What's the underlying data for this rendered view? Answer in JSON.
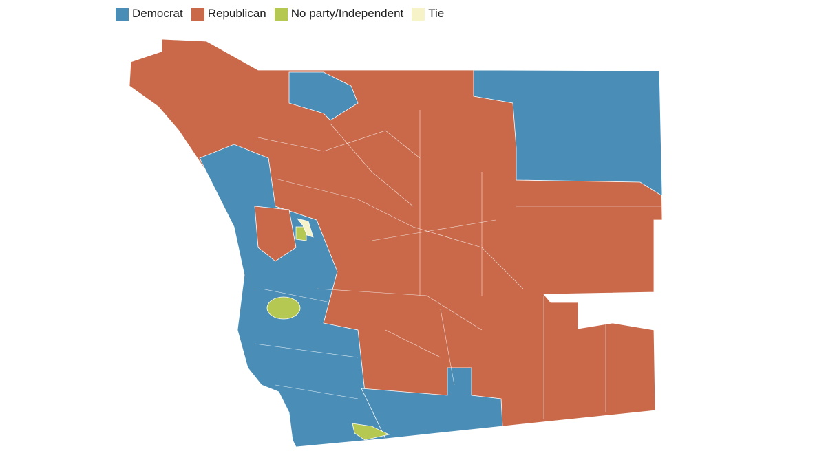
{
  "legend": [
    {
      "label": "Democrat",
      "color": "#4a8db7"
    },
    {
      "label": "Republican",
      "color": "#c9694a"
    },
    {
      "label": "No party/Independent",
      "color": "#b5c952"
    },
    {
      "label": "Tie",
      "color": "#f7f3c8"
    }
  ]
}
